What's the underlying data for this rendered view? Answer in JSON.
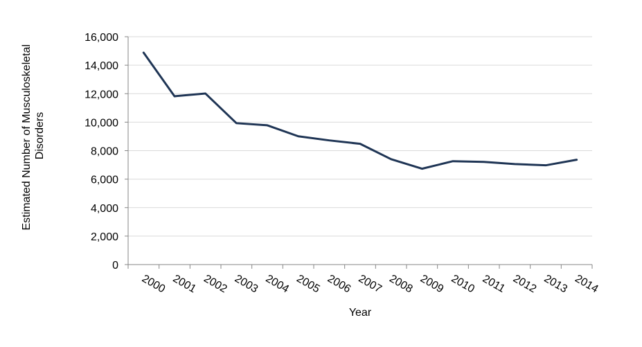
{
  "chart_data": {
    "type": "line",
    "title": "",
    "xlabel": "Year",
    "ylabel_lines": [
      "Estimated Number of Musculoskeletal",
      "Disorders"
    ],
    "categories": [
      "2000",
      "2001",
      "2002",
      "2003",
      "2004",
      "2005",
      "2006",
      "2007",
      "2008",
      "2009",
      "2010",
      "2011",
      "2012",
      "2013",
      "2014"
    ],
    "series": [
      {
        "values": [
          14880,
          11820,
          12010,
          9930,
          9780,
          9010,
          8720,
          8480,
          7400,
          6730,
          7260,
          7210,
          7060,
          6970,
          7360
        ]
      }
    ],
    "ylim": [
      0,
      16000
    ],
    "yticks": [
      0,
      2000,
      4000,
      6000,
      8000,
      10000,
      12000,
      14000,
      16000
    ],
    "ytick_labels": [
      "0",
      "2,000",
      "4,000",
      "6,000",
      "8,000",
      "10,000",
      "12,000",
      "14,000",
      "16,000"
    ],
    "grid": true,
    "legend": "none",
    "colors": {
      "series": "#1f3555",
      "grid": "#d9d9d9",
      "axis": "#868686"
    }
  }
}
